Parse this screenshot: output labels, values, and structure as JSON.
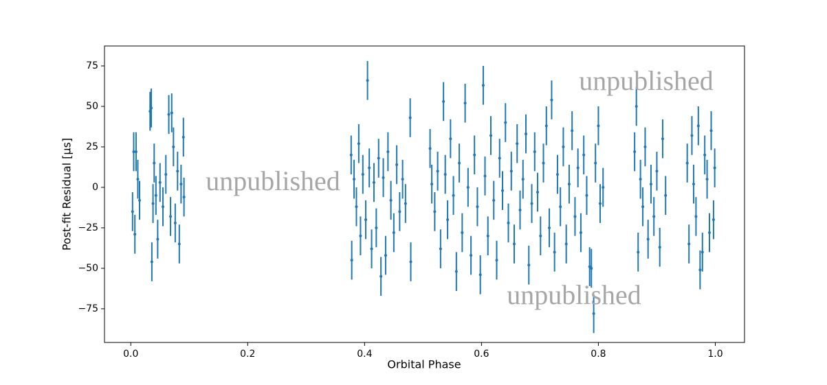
{
  "chart_data": {
    "type": "errorbar",
    "xlabel": "Orbital Phase",
    "ylabel": "Post-fit Residual [μs]",
    "annotations": [
      "unpublished",
      "unpublished",
      "unpublished"
    ],
    "color": "#1f77b4",
    "xlim": [
      -0.045,
      1.05
    ],
    "ylim": [
      -95.8,
      87.3
    ],
    "xticks": [
      {
        "value": 0,
        "label": "0.0"
      },
      0.2,
      0.4,
      0.6,
      0.8,
      {
        "value": 1,
        "label": "1.0"
      }
    ],
    "yticks": [
      {
        "value": -75,
        "label": "−75"
      },
      {
        "value": -50,
        "label": "−50"
      },
      {
        "value": -25,
        "label": "−25"
      },
      0,
      25,
      50,
      75
    ],
    "yerr": 12,
    "x": [
      0.003,
      0.005,
      0.007,
      0.009,
      0.012,
      0.015,
      0.033,
      0.035,
      0.036,
      0.038,
      0.04,
      0.043,
      0.046,
      0.05,
      0.055,
      0.06,
      0.065,
      0.068,
      0.07,
      0.073,
      0.076,
      0.08,
      0.083,
      0.086,
      0.09,
      0.091,
      0.377,
      0.378,
      0.382,
      0.386,
      0.39,
      0.393,
      0.397,
      0.402,
      0.405,
      0.408,
      0.412,
      0.416,
      0.42,
      0.424,
      0.428,
      0.432,
      0.436,
      0.44,
      0.445,
      0.45,
      0.455,
      0.46,
      0.465,
      0.47,
      0.478,
      0.479,
      0.512,
      0.515,
      0.52,
      0.525,
      0.53,
      0.535,
      0.538,
      0.542,
      0.547,
      0.552,
      0.557,
      0.562,
      0.567,
      0.572,
      0.577,
      0.582,
      0.588,
      0.593,
      0.598,
      0.603,
      0.606,
      0.611,
      0.616,
      0.621,
      0.626,
      0.631,
      0.636,
      0.641,
      0.646,
      0.651,
      0.656,
      0.661,
      0.666,
      0.671,
      0.676,
      0.681,
      0.686,
      0.691,
      0.696,
      0.701,
      0.706,
      0.711,
      0.716,
      0.72,
      0.725,
      0.73,
      0.735,
      0.74,
      0.745,
      0.75,
      0.755,
      0.76,
      0.765,
      0.77,
      0.775,
      0.78,
      0.785,
      0.788,
      0.792,
      0.795,
      0.8,
      0.803,
      0.808,
      0.862,
      0.865,
      0.868,
      0.872,
      0.876,
      0.88,
      0.885,
      0.89,
      0.895,
      0.9,
      0.905,
      0.91,
      0.915,
      0.952,
      0.955,
      0.96,
      0.963,
      0.967,
      0.971,
      0.974,
      0.978,
      0.982,
      0.986,
      0.99,
      0.993,
      0.997,
      0.999
    ],
    "values": [
      -15,
      22,
      -29,
      22,
      5,
      -8,
      47,
      49,
      -46,
      -10,
      15,
      -5,
      -32,
      3,
      -12,
      8,
      45,
      -18,
      46,
      25,
      -22,
      10,
      -35,
      2,
      31,
      -6,
      20,
      -45,
      5,
      -12,
      27,
      -30,
      8,
      -20,
      66,
      12,
      -38,
      3,
      -25,
      18,
      -55,
      6,
      -42,
      22,
      -8,
      -28,
      14,
      -15,
      5,
      -10,
      43,
      -46,
      24,
      2,
      -15,
      10,
      -38,
      53,
      8,
      -20,
      30,
      -5,
      -52,
      15,
      -28,
      52,
      0,
      -42,
      20,
      -12,
      -54,
      63,
      7,
      -30,
      32,
      -8,
      -45,
      18,
      -2,
      40,
      -22,
      10,
      -35,
      27,
      -14,
      5,
      33,
      -48,
      -10,
      22,
      -3,
      -30,
      15,
      38,
      -25,
      54,
      -40,
      8,
      -12,
      25,
      -35,
      2,
      35,
      -18,
      12,
      -28,
      20,
      -5,
      -49,
      -50,
      -78,
      15,
      38,
      -10,
      0,
      22,
      50,
      -40,
      5,
      -12,
      25,
      -32,
      2,
      -18,
      10,
      -37,
      30,
      -5,
      15,
      -35,
      32,
      2,
      -18,
      38,
      -51,
      -40,
      20,
      5,
      -28,
      35,
      -20,
      12
    ]
  }
}
